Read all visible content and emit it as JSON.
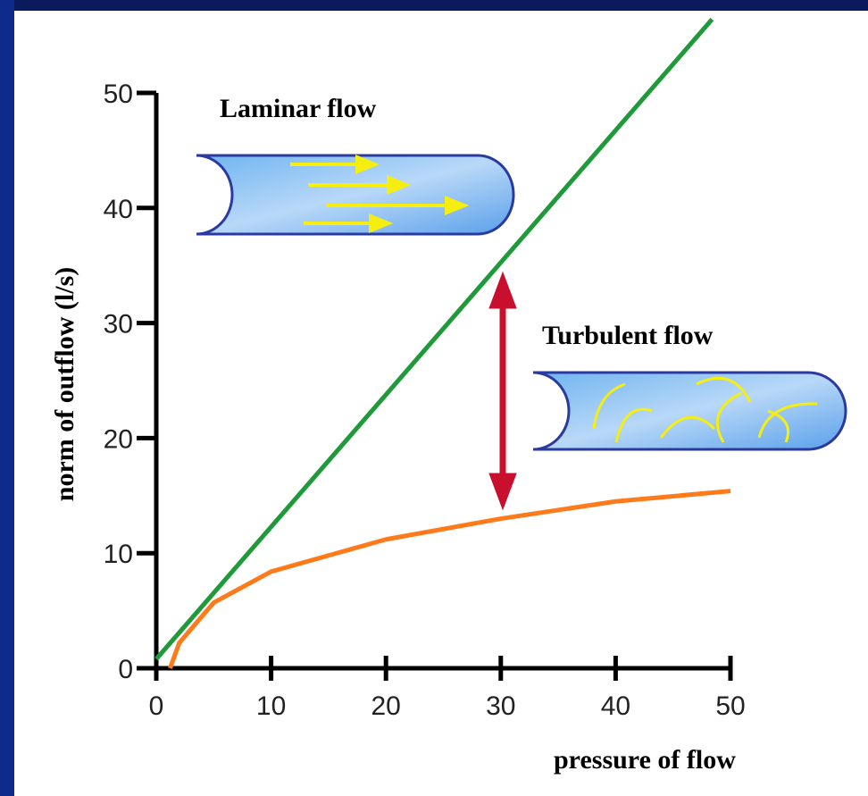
{
  "chart_data": {
    "type": "line",
    "annotations": [
      "Laminar flow",
      "Turbulent flow"
    ],
    "x_label": "pressure of flow",
    "y_label": "norm of outflow (l/s)",
    "xlim": [
      0,
      50
    ],
    "xticks": [
      0,
      10,
      20,
      30,
      40,
      50
    ],
    "ylim": [
      0,
      50
    ],
    "yticks": [
      0,
      10,
      20,
      30,
      40,
      50
    ],
    "series": [
      {
        "color": "#1f9a3a",
        "x": [
          0,
          48.4
        ],
        "values": [
          0.8,
          56.4
        ]
      },
      {
        "color": "#ff7a1a",
        "x": [
          1.2,
          2,
          5,
          10,
          20,
          30,
          40,
          50
        ],
        "values": [
          0,
          2.2,
          5.7,
          8.4,
          11.2,
          13,
          14.5,
          15.4
        ]
      }
    ]
  }
}
